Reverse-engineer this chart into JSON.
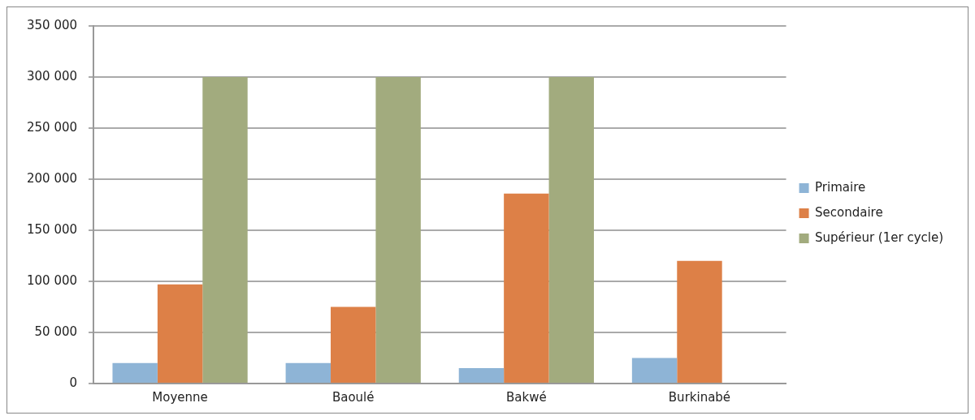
{
  "chart_data": {
    "type": "bar",
    "categories": [
      "Moyenne",
      "Baoulé",
      "Bakwé",
      "Burkinabé"
    ],
    "series": [
      {
        "name": "Primaire",
        "color": "#8eb4d6",
        "values": [
          20000,
          20000,
          15000,
          25000
        ]
      },
      {
        "name": "Secondaire",
        "color": "#dd8047",
        "values": [
          97000,
          75000,
          186000,
          120000
        ]
      },
      {
        "name": "Supérieur (1er cycle)",
        "color": "#a2ab7e",
        "values": [
          300000,
          300000,
          300000,
          null
        ]
      }
    ],
    "ylim": [
      0,
      350000
    ],
    "yticks": [
      {
        "value": 0,
        "label": "0"
      },
      {
        "value": 50000,
        "label": "50 000"
      },
      {
        "value": 100000,
        "label": "100 000"
      },
      {
        "value": 150000,
        "label": "150 000"
      },
      {
        "value": 200000,
        "label": "200 000"
      },
      {
        "value": 250000,
        "label": "250 000"
      },
      {
        "value": 300000,
        "label": "300 000"
      },
      {
        "value": 350000,
        "label": "350 000"
      }
    ],
    "grid": "y",
    "legend": "right"
  }
}
